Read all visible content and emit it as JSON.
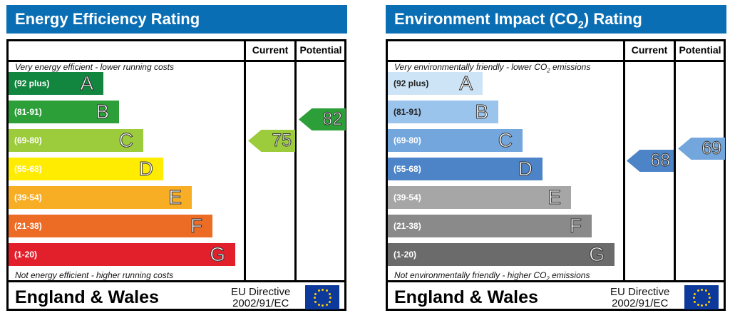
{
  "panels": [
    {
      "title": "Energy Efficiency Rating",
      "col_current": "Current",
      "col_potential": "Potential",
      "top_note": "Very energy efficient - lower running costs",
      "bottom_note": "Not energy efficient - higher running costs",
      "bands": [
        {
          "range": "(92 plus)",
          "letter": "A",
          "color": "#12853f"
        },
        {
          "range": "(81-91)",
          "letter": "B",
          "color": "#2c9f38"
        },
        {
          "range": "(69-80)",
          "letter": "C",
          "color": "#9ccb3b"
        },
        {
          "range": "(55-68)",
          "letter": "D",
          "color": "#ffec00"
        },
        {
          "range": "(39-54)",
          "letter": "E",
          "color": "#f7ad24"
        },
        {
          "range": "(21-38)",
          "letter": "F",
          "color": "#ec6b25"
        },
        {
          "range": "(1-20)",
          "letter": "G",
          "color": "#e2202b"
        }
      ],
      "current": {
        "value": "75",
        "color": "#9ccb3b"
      },
      "potential": {
        "value": "82",
        "color": "#2c9f38"
      },
      "region": "England & Wales",
      "directive_line1": "EU Directive",
      "directive_line2": "2002/91/EC"
    },
    {
      "title": "Environment Impact (CO2) Rating",
      "col_current": "Current",
      "col_potential": "Potential",
      "top_note": "Very environmentally friendly - lower CO2 emissions",
      "bottom_note": "Not environmentally friendly - higher CO2 emissions",
      "bands": [
        {
          "range": "(92 plus)",
          "letter": "A",
          "color": "#cde4f6"
        },
        {
          "range": "(81-91)",
          "letter": "B",
          "color": "#9bc4ec"
        },
        {
          "range": "(69-80)",
          "letter": "C",
          "color": "#72a6dc"
        },
        {
          "range": "(55-68)",
          "letter": "D",
          "color": "#4d84c8"
        },
        {
          "range": "(39-54)",
          "letter": "E",
          "color": "#a6a6a6"
        },
        {
          "range": "(21-38)",
          "letter": "F",
          "color": "#8a8a8a"
        },
        {
          "range": "(1-20)",
          "letter": "G",
          "color": "#6b6b6b"
        }
      ],
      "current": {
        "value": "68",
        "color": "#4d84c8"
      },
      "potential": {
        "value": "69",
        "color": "#72a6dc"
      },
      "region": "England & Wales",
      "directive_line1": "EU Directive",
      "directive_line2": "2002/91/EC"
    }
  ]
}
